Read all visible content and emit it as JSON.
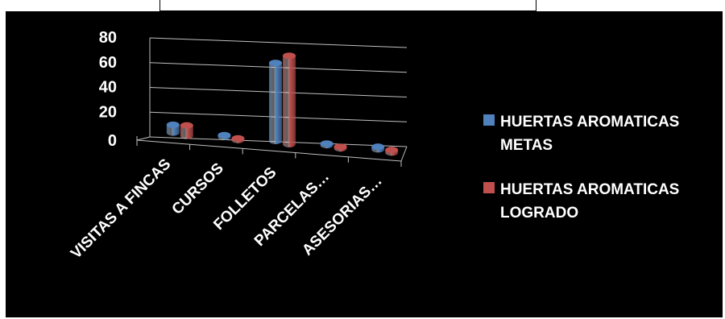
{
  "chart_data": {
    "type": "bar",
    "title": "",
    "xlabel": "",
    "ylabel": "",
    "categories": [
      "VISITAS A FINCAS",
      "CURSOS",
      "FOLLETOS",
      "PARCELAS…",
      "ASESORIAS…"
    ],
    "series": [
      {
        "name": "HUERTAS AROMATICAS METAS",
        "color": "#4f81bd",
        "values": [
          6,
          1,
          60,
          1,
          2
        ]
      },
      {
        "name": "HUERTAS AROMATICAS LOGRADO",
        "color": "#c0504d",
        "values": [
          8,
          1,
          68,
          1,
          2
        ]
      }
    ],
    "ylim": [
      0,
      80
    ],
    "yticks": [
      "0",
      "20",
      "40",
      "60",
      "80"
    ],
    "grid": true,
    "legend_position": "right",
    "background": "#000000",
    "text_color": "#ffffff"
  }
}
